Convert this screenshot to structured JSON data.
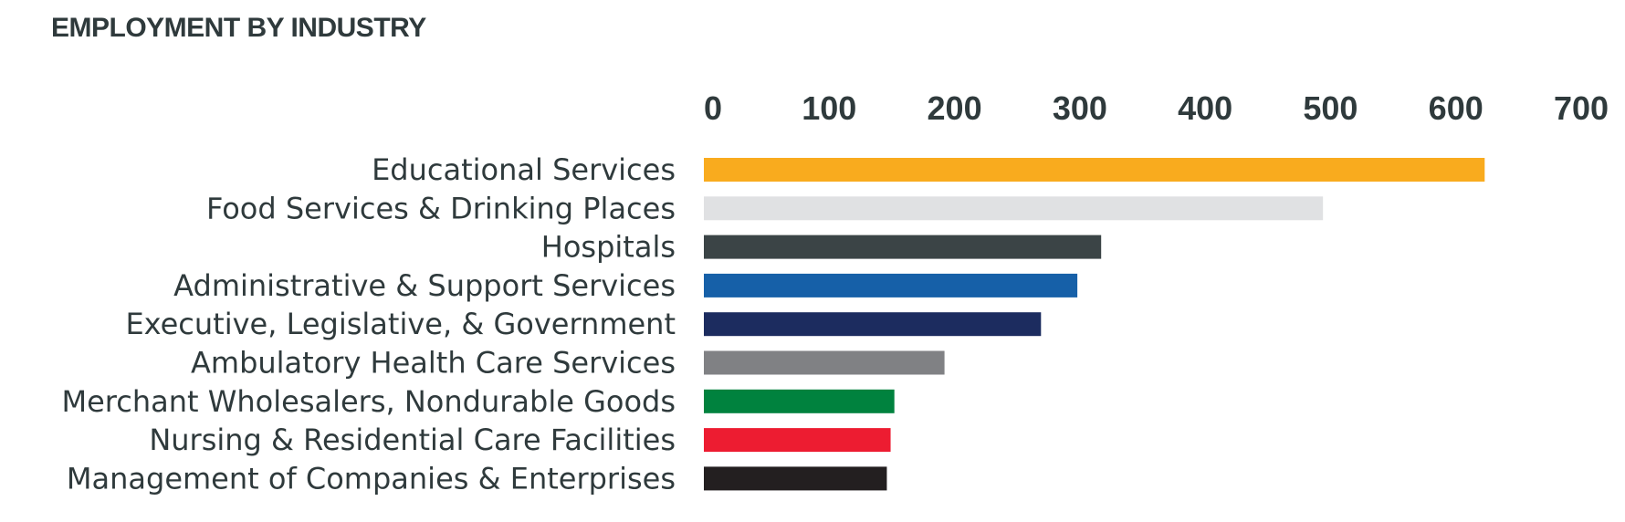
{
  "chart_data": {
    "type": "bar",
    "orientation": "horizontal",
    "title": "EMPLOYMENT BY INDUSTRY",
    "xlabel": "",
    "ylabel": "",
    "xlim": [
      0,
      700
    ],
    "xticks": [
      "0",
      "100",
      "200",
      "300",
      "400",
      "500",
      "600",
      "700"
    ],
    "x_axis_position": "top",
    "grid": false,
    "legend": "none",
    "categories": [
      "Educational Services",
      "Food Services & Drinking Places",
      "Hospitals",
      "Administrative & Support Services",
      "Executive, Legislative, & Government",
      "Ambulatory Health Care Services",
      "Merchant Wholesalers, Nondurable Goods",
      "Nursing & Residential Care Facilities",
      "Management of Companies & Enterprises"
    ],
    "values": [
      623,
      494,
      317,
      298,
      269,
      192,
      152,
      149,
      146
    ],
    "colors": [
      "#f9ab1e",
      "#e0e1e3",
      "#3b4446",
      "#1660a8",
      "#1c2c5f",
      "#808184",
      "#00823e",
      "#ed1c31",
      "#231f20"
    ]
  }
}
